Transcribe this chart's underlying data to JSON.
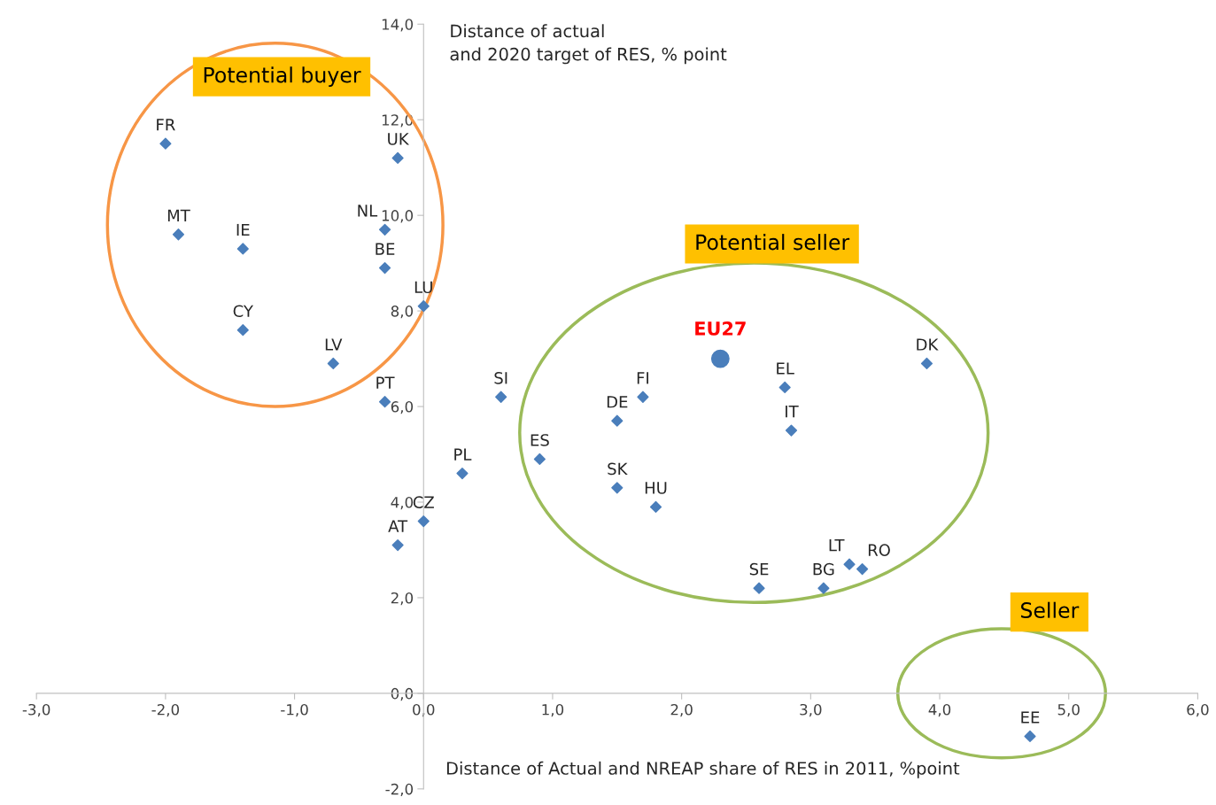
{
  "chart_data": {
    "type": "scatter",
    "xlabel": "Distance of Actual and NREAP share of RES in 2011, %point",
    "ylabel": "Distance of actual\nand 2020 target of RES, % point",
    "xlim": [
      -3,
      6
    ],
    "ylim": [
      -2,
      14
    ],
    "xticks": [
      {
        "value": -3,
        "label": "-3,0"
      },
      {
        "value": -2,
        "label": "-2,0"
      },
      {
        "value": -1,
        "label": "-1,0"
      },
      {
        "value": 0,
        "label": "0,0"
      },
      {
        "value": 1,
        "label": "1,0"
      },
      {
        "value": 2,
        "label": "2,0"
      },
      {
        "value": 3,
        "label": "3,0"
      },
      {
        "value": 4,
        "label": "4,0"
      },
      {
        "value": 5,
        "label": "5,0"
      },
      {
        "value": 6,
        "label": "6,0"
      }
    ],
    "yticks": [
      {
        "value": -2,
        "label": "-2,0"
      },
      {
        "value": 0,
        "label": "0,0"
      },
      {
        "value": 2,
        "label": "2,0"
      },
      {
        "value": 4,
        "label": "4,0"
      },
      {
        "value": 6,
        "label": "6,0"
      },
      {
        "value": 8,
        "label": "8,0"
      },
      {
        "value": 10,
        "label": "10,0"
      },
      {
        "value": 12,
        "label": "12,0"
      },
      {
        "value": 14,
        "label": "14,0"
      }
    ],
    "grid": false,
    "legend": false,
    "series": [
      {
        "color": "#4a7ebb",
        "marker": "diamond",
        "x": [
          -2.0,
          -0.2,
          -1.9,
          -1.4,
          -0.3,
          -0.3,
          0.0,
          -1.4,
          -0.7,
          -0.3,
          0.6,
          1.7,
          1.5,
          2.8,
          2.85,
          3.9,
          0.9,
          0.3,
          1.5,
          1.8,
          0.0,
          -0.2,
          2.6,
          3.1,
          3.3,
          3.4,
          4.7
        ],
        "values": [
          11.5,
          11.2,
          9.6,
          9.3,
          9.7,
          8.9,
          8.1,
          7.6,
          6.9,
          6.1,
          6.2,
          6.2,
          5.7,
          6.4,
          5.5,
          6.9,
          4.9,
          4.6,
          4.3,
          3.9,
          3.6,
          3.1,
          2.2,
          2.2,
          2.7,
          2.6,
          -0.9
        ]
      },
      {
        "name": "EU27",
        "color": "#4a7ebb",
        "marker": "circle",
        "x": [
          2.3
        ],
        "values": [
          7.0
        ]
      }
    ],
    "annotations": [
      "Potential buyer",
      "Potential seller",
      "Seller",
      {
        "text": "FR",
        "x": -2.0,
        "y": 11.5
      },
      {
        "text": "UK",
        "x": -0.2,
        "y": 11.2
      },
      {
        "text": "MT",
        "x": -1.9,
        "y": 9.6
      },
      {
        "text": "IE",
        "x": -1.4,
        "y": 9.3
      },
      {
        "text": "NL",
        "x": -0.3,
        "y": 9.7
      },
      {
        "text": "BE",
        "x": -0.3,
        "y": 8.9
      },
      {
        "text": "LU",
        "x": 0.0,
        "y": 8.1
      },
      {
        "text": "CY",
        "x": -1.4,
        "y": 7.6
      },
      {
        "text": "LV",
        "x": -0.7,
        "y": 6.9
      },
      {
        "text": "PT",
        "x": -0.3,
        "y": 6.1
      },
      {
        "text": "SI",
        "x": 0.6,
        "y": 6.2
      },
      {
        "text": "FI",
        "x": 1.7,
        "y": 6.2
      },
      {
        "text": "DE",
        "x": 1.5,
        "y": 5.7
      },
      {
        "text": "EL",
        "x": 2.8,
        "y": 6.4
      },
      {
        "text": "IT",
        "x": 2.85,
        "y": 5.5
      },
      {
        "text": "DK",
        "x": 3.9,
        "y": 6.9
      },
      {
        "text": "ES",
        "x": 0.9,
        "y": 4.9
      },
      {
        "text": "PL",
        "x": 0.3,
        "y": 4.6
      },
      {
        "text": "SK",
        "x": 1.5,
        "y": 4.3
      },
      {
        "text": "HU",
        "x": 1.8,
        "y": 3.9
      },
      {
        "text": "CZ",
        "x": 0.0,
        "y": 3.6
      },
      {
        "text": "AT",
        "x": -0.2,
        "y": 3.1
      },
      {
        "text": "SE",
        "x": 2.6,
        "y": 2.2
      },
      {
        "text": "BG",
        "x": 3.1,
        "y": 2.2
      },
      {
        "text": "LT",
        "x": 3.3,
        "y": 2.7
      },
      {
        "text": "RO",
        "x": 3.4,
        "y": 2.6
      },
      {
        "text": "EE",
        "x": 4.7,
        "y": -0.9
      }
    ]
  }
}
